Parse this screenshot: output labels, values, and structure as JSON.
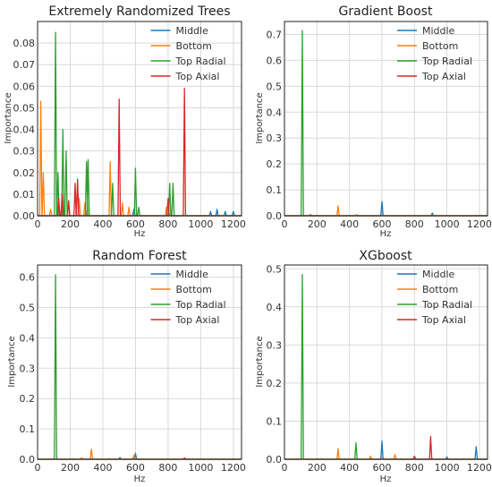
{
  "chart_data": [
    {
      "type": "line",
      "title": "Extremely Randomized Trees",
      "xlabel": "Hz",
      "ylabel": "Importance",
      "xlim": [
        0,
        1250
      ],
      "ylim": [
        0,
        0.09
      ],
      "xticks": [
        0,
        200,
        400,
        600,
        800,
        1000,
        1200
      ],
      "yticks": [
        0,
        0.01,
        0.02,
        0.03,
        0.04,
        0.05,
        0.06,
        0.07,
        0.08
      ],
      "ytick_labels": [
        "0.00",
        "0.01",
        "0.02",
        "0.03",
        "0.04",
        "0.05",
        "0.06",
        "0.07",
        "0.08"
      ],
      "grid": true,
      "legend": "top-right",
      "series": [
        {
          "name": "Middle",
          "color": "#1f77b4",
          "peaks": [
            [
              590,
              0.003
            ],
            [
              1060,
              0.002
            ],
            [
              1100,
              0.003
            ],
            [
              1150,
              0.002
            ],
            [
              1200,
              0.002
            ]
          ]
        },
        {
          "name": "Bottom",
          "color": "#ff7f0e",
          "peaks": [
            [
              20,
              0.053
            ],
            [
              35,
              0.02
            ],
            [
              80,
              0.003
            ],
            [
              255,
              0.008
            ],
            [
              290,
              0.006
            ],
            [
              445,
              0.025
            ],
            [
              520,
              0.006
            ],
            [
              560,
              0.004
            ],
            [
              790,
              0.004
            ]
          ]
        },
        {
          "name": "Top Radial",
          "color": "#2ca02c",
          "peaks": [
            [
              110,
              0.085
            ],
            [
              125,
              0.02
            ],
            [
              155,
              0.04
            ],
            [
              175,
              0.03
            ],
            [
              300,
              0.025
            ],
            [
              310,
              0.026
            ],
            [
              460,
              0.015
            ],
            [
              600,
              0.022
            ],
            [
              620,
              0.004
            ],
            [
              810,
              0.015
            ],
            [
              830,
              0.015
            ]
          ]
        },
        {
          "name": "Top Axial",
          "color": "#d62728",
          "peaks": [
            [
              130,
              0.008
            ],
            [
              150,
              0.01
            ],
            [
              190,
              0.007
            ],
            [
              230,
              0.015
            ],
            [
              245,
              0.017
            ],
            [
              500,
              0.054
            ],
            [
              800,
              0.008
            ],
            [
              900,
              0.059
            ]
          ]
        }
      ]
    },
    {
      "type": "line",
      "title": "Gradient Boost",
      "xlabel": "Hz",
      "ylabel": "Importance",
      "xlim": [
        0,
        1250
      ],
      "ylim": [
        0,
        0.75
      ],
      "xticks": [
        0,
        200,
        400,
        600,
        800,
        1000,
        1200
      ],
      "yticks": [
        0,
        0.1,
        0.2,
        0.3,
        0.4,
        0.5,
        0.6,
        0.7
      ],
      "ytick_labels": [
        "0.0",
        "0.1",
        "0.2",
        "0.3",
        "0.4",
        "0.5",
        "0.6",
        "0.7"
      ],
      "grid": true,
      "legend": "top-right",
      "series": [
        {
          "name": "Middle",
          "color": "#1f77b4",
          "peaks": [
            [
              600,
              0.055
            ],
            [
              910,
              0.01
            ]
          ]
        },
        {
          "name": "Bottom",
          "color": "#ff7f0e",
          "peaks": [
            [
              330,
              0.038
            ],
            [
              445,
              0.005
            ]
          ]
        },
        {
          "name": "Top Radial",
          "color": "#2ca02c",
          "peaks": [
            [
              110,
              0.715
            ]
          ]
        },
        {
          "name": "Top Axial",
          "color": "#d62728",
          "peaks": [
            [
              160,
              0.004
            ]
          ]
        }
      ]
    },
    {
      "type": "line",
      "title": "Random Forest",
      "xlabel": "Hz",
      "ylabel": "Importance",
      "xlim": [
        0,
        1250
      ],
      "ylim": [
        0,
        0.64
      ],
      "xticks": [
        0,
        200,
        400,
        600,
        800,
        1000,
        1200
      ],
      "yticks": [
        0,
        0.1,
        0.2,
        0.3,
        0.4,
        0.5,
        0.6
      ],
      "ytick_labels": [
        "0.0",
        "0.1",
        "0.2",
        "0.3",
        "0.4",
        "0.5",
        "0.6"
      ],
      "grid": true,
      "legend": "top-right",
      "series": [
        {
          "name": "Middle",
          "color": "#1f77b4",
          "peaks": [
            [
              505,
              0.006
            ],
            [
              600,
              0.02
            ]
          ]
        },
        {
          "name": "Bottom",
          "color": "#ff7f0e",
          "peaks": [
            [
              270,
              0.005
            ],
            [
              330,
              0.033
            ],
            [
              590,
              0.012
            ]
          ]
        },
        {
          "name": "Top Radial",
          "color": "#2ca02c",
          "peaks": [
            [
              110,
              0.608
            ]
          ]
        },
        {
          "name": "Top Axial",
          "color": "#d62728",
          "peaks": [
            [
              900,
              0.004
            ]
          ]
        }
      ]
    },
    {
      "type": "line",
      "title": "XGboost",
      "xlabel": "Hz",
      "ylabel": "Importance",
      "xlim": [
        0,
        1250
      ],
      "ylim": [
        0,
        0.51
      ],
      "xticks": [
        0,
        200,
        400,
        600,
        800,
        1000,
        1200
      ],
      "yticks": [
        0,
        0.1,
        0.2,
        0.3,
        0.4,
        0.5
      ],
      "ytick_labels": [
        "0.0",
        "0.1",
        "0.2",
        "0.3",
        "0.4",
        "0.5"
      ],
      "grid": true,
      "legend": "top-right",
      "series": [
        {
          "name": "Middle",
          "color": "#1f77b4",
          "peaks": [
            [
              600,
              0.048
            ],
            [
              1000,
              0.006
            ],
            [
              1180,
              0.033
            ]
          ]
        },
        {
          "name": "Bottom",
          "color": "#ff7f0e",
          "peaks": [
            [
              330,
              0.028
            ],
            [
              530,
              0.008
            ],
            [
              680,
              0.012
            ]
          ]
        },
        {
          "name": "Top Radial",
          "color": "#2ca02c",
          "peaks": [
            [
              110,
              0.485
            ],
            [
              440,
              0.043
            ]
          ]
        },
        {
          "name": "Top Axial",
          "color": "#d62728",
          "peaks": [
            [
              800,
              0.008
            ],
            [
              900,
              0.06
            ]
          ]
        }
      ]
    }
  ]
}
